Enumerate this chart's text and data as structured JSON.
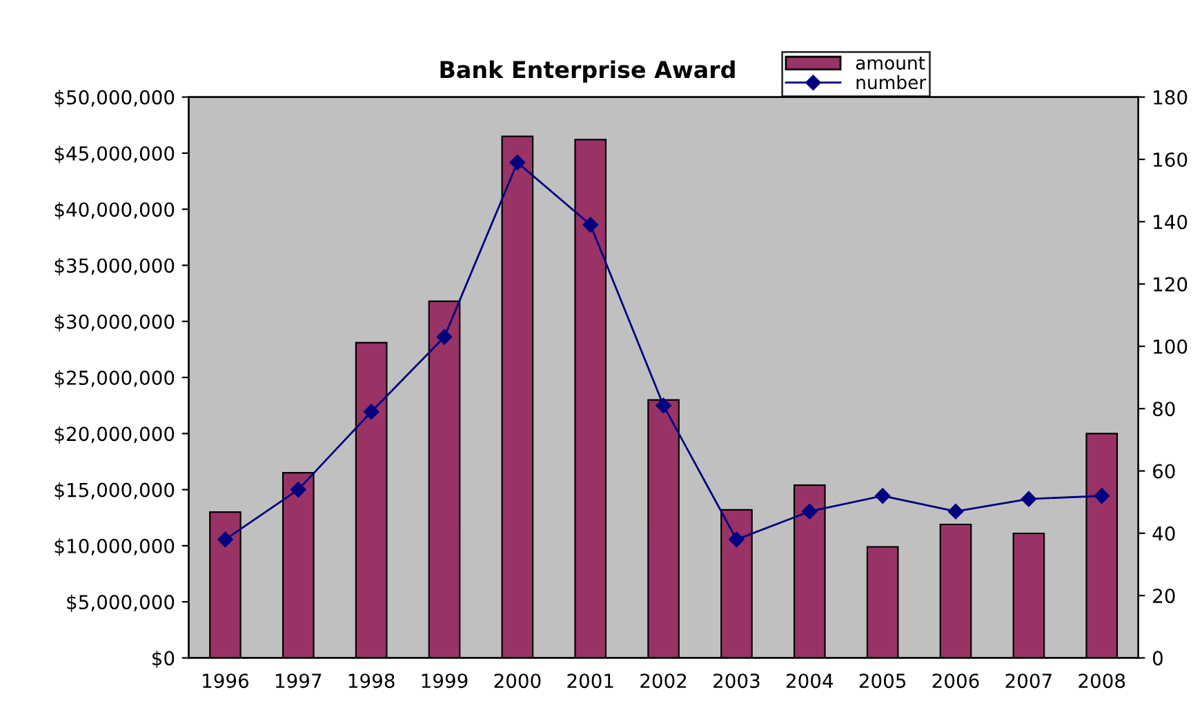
{
  "chart_data": {
    "type": "bar",
    "title": "Bank Enterprise Award",
    "categories": [
      "1996",
      "1997",
      "1998",
      "1999",
      "2000",
      "2001",
      "2002",
      "2003",
      "2004",
      "2005",
      "2006",
      "2007",
      "2008"
    ],
    "series": [
      {
        "name": "amount",
        "color": "#993366",
        "values": [
          13000000,
          16500000,
          28100000,
          31800000,
          46500000,
          46200000,
          23000000,
          13200000,
          15400000,
          9900000,
          11900000,
          11100000,
          20000000
        ]
      },
      {
        "name": "number",
        "type": "line",
        "axis": "y2",
        "color": "#000080",
        "marker": "diamond",
        "values": [
          38,
          54,
          79,
          103,
          159,
          139,
          81,
          38,
          47,
          52,
          47,
          51,
          52
        ]
      }
    ],
    "ylim": [
      0,
      50000000
    ],
    "yticks": [
      {
        "value": 0,
        "label": "$0"
      },
      {
        "value": 5000000,
        "label": "$5,000,000"
      },
      {
        "value": 10000000,
        "label": "$10,000,000"
      },
      {
        "value": 15000000,
        "label": "$15,000,000"
      },
      {
        "value": 20000000,
        "label": "$20,000,000"
      },
      {
        "value": 25000000,
        "label": "$25,000,000"
      },
      {
        "value": 30000000,
        "label": "$30,000,000"
      },
      {
        "value": 35000000,
        "label": "$35,000,000"
      },
      {
        "value": 40000000,
        "label": "$40,000,000"
      },
      {
        "value": 45000000,
        "label": "$45,000,000"
      },
      {
        "value": 50000000,
        "label": "$50,000,000"
      }
    ],
    "y2lim": [
      0,
      180
    ],
    "y2ticks": [
      0,
      20,
      40,
      60,
      80,
      100,
      120,
      140,
      160,
      180
    ],
    "grid": false,
    "legend": "top right"
  }
}
